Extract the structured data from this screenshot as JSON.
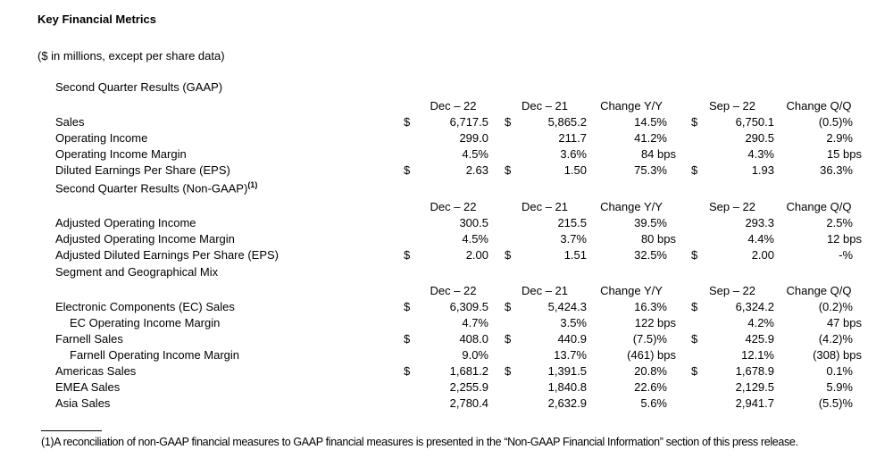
{
  "page": {
    "title": "Key Financial Metrics",
    "subtitle": "($ in millions, except per share data)"
  },
  "table": {
    "columns": [
      "Dec – 22",
      "Dec – 21",
      "Change Y/Y",
      "Sep – 22",
      "Change Q/Q"
    ],
    "sections": [
      {
        "heading": "Second Quarter Results (GAAP)",
        "heading_sup": "",
        "rows": [
          {
            "label": "Sales",
            "indent": false,
            "cells": [
              "$",
              "6,717.5",
              "$",
              "5,865.2",
              "14.5%",
              "$",
              "6,750.1",
              "(0.5)%"
            ]
          },
          {
            "label": "Operating Income",
            "indent": false,
            "cells": [
              "",
              "299.0",
              "",
              "211.7",
              "41.2%",
              "",
              "290.5",
              "2.9%"
            ]
          },
          {
            "label": "Operating Income Margin",
            "indent": false,
            "cells": [
              "",
              "4.5%",
              "",
              "3.6%",
              "84 bps",
              "",
              "4.3%",
              "15 bps"
            ]
          },
          {
            "label": "Diluted Earnings Per Share (EPS)",
            "indent": false,
            "cells": [
              "$",
              "2.63",
              "$",
              "1.50",
              "75.3%",
              "$",
              "1.93",
              "36.3%"
            ]
          }
        ]
      },
      {
        "heading": "Second Quarter Results (Non-GAAP)",
        "heading_sup": "(1)",
        "rows": [
          {
            "label": "Adjusted Operating Income",
            "indent": false,
            "cells": [
              "",
              "300.5",
              "",
              "215.5",
              "39.5%",
              "",
              "293.3",
              "2.5%"
            ]
          },
          {
            "label": "Adjusted Operating Income Margin",
            "indent": false,
            "cells": [
              "",
              "4.5%",
              "",
              "3.7%",
              "80 bps",
              "",
              "4.4%",
              "12 bps"
            ]
          },
          {
            "label": "Adjusted Diluted Earnings Per Share (EPS)",
            "indent": false,
            "cells": [
              "$",
              "2.00",
              "$",
              "1.51",
              "32.5%",
              "$",
              "2.00",
              "-%"
            ]
          }
        ]
      },
      {
        "heading": "Segment and Geographical Mix",
        "heading_sup": "",
        "rows": [
          {
            "label": "Electronic Components (EC) Sales",
            "indent": false,
            "cells": [
              "$",
              "6,309.5",
              "$",
              "5,424.3",
              "16.3%",
              "$",
              "6,324.2",
              "(0.2)%"
            ]
          },
          {
            "label": "EC Operating Income Margin",
            "indent": true,
            "cells": [
              "",
              "4.7%",
              "",
              "3.5%",
              "122 bps",
              "",
              "4.2%",
              "47 bps"
            ]
          },
          {
            "label": "Farnell Sales",
            "indent": false,
            "cells": [
              "$",
              "408.0",
              "$",
              "440.9",
              "(7.5)%",
              "$",
              "425.9",
              "(4.2)%"
            ]
          },
          {
            "label": "Farnell Operating Income Margin",
            "indent": true,
            "cells": [
              "",
              "9.0%",
              "",
              "13.7%",
              "(461) bps",
              "",
              "12.1%",
              "(308) bps"
            ]
          },
          {
            "label": "Americas Sales",
            "indent": false,
            "cells": [
              "$",
              "1,681.2",
              "$",
              "1,391.5",
              "20.8%",
              "$",
              "1,678.9",
              "0.1%"
            ]
          },
          {
            "label": "EMEA Sales",
            "indent": false,
            "cells": [
              "",
              "2,255.9",
              "",
              "1,840.8",
              "22.6%",
              "",
              "2,129.5",
              "5.9%"
            ]
          },
          {
            "label": "Asia Sales",
            "indent": false,
            "cells": [
              "",
              "2,780.4",
              "",
              "2,632.9",
              "5.6%",
              "",
              "2,941.7",
              "(5.5)%"
            ]
          }
        ]
      }
    ]
  },
  "footnote": {
    "marker": "(1)",
    "text": "A reconciliation of non-GAAP financial measures to GAAP financial measures is presented in the “Non-GAAP Financial Information” section of this press release."
  }
}
